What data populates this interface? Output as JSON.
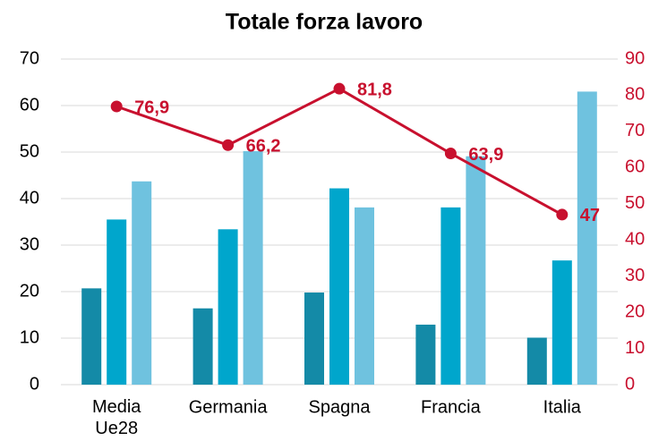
{
  "chart_data": {
    "type": "bar",
    "title": "Totale forza lavoro",
    "categories": [
      "Media Ue28",
      "Germania",
      "Spagna",
      "Francia",
      "Italia"
    ],
    "series": [
      {
        "color": "#148aa7",
        "values": [
          20.7,
          16.4,
          19.8,
          12.9,
          10.1
        ]
      },
      {
        "color": "#00a6cc",
        "values": [
          35.5,
          33.4,
          42.2,
          38.1,
          26.7
        ]
      },
      {
        "color": "#6fc2df",
        "values": [
          43.7,
          50.2,
          38.1,
          49.1,
          63.0
        ]
      },
      {
        "type": "line",
        "axis": "y2",
        "color": "#c8102e",
        "values": [
          76.9,
          66.2,
          81.8,
          63.9,
          47
        ],
        "value_labels": [
          "76,9",
          "66,2",
          "81,8",
          "63,9",
          "47"
        ]
      }
    ],
    "ylim": [
      0,
      70
    ],
    "yticks": [
      0,
      10,
      20,
      30,
      40,
      50,
      60,
      70
    ],
    "y2lim": [
      0,
      90
    ],
    "y2ticks": [
      0,
      10,
      20,
      30,
      40,
      50,
      60,
      70,
      80,
      90
    ],
    "grid": true
  }
}
